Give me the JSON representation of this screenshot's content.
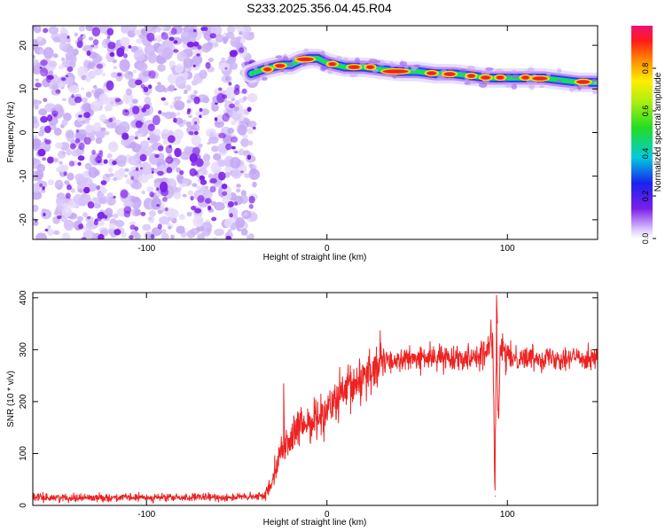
{
  "figure_title": "S233.2025.356.04.45.R04",
  "chart_data": [
    {
      "type": "heatmap",
      "title": "S233.2025.356.04.45.R04",
      "xlabel": "Height of straight line (km)",
      "ylabel": "Frequency (Hz)",
      "xlim": [
        -163,
        150
      ],
      "ylim": [
        -24.5,
        24.5
      ],
      "x_ticks": [
        -100,
        0,
        100
      ],
      "y_ticks": [
        -20,
        -10,
        0,
        10,
        20
      ],
      "noise_region_x": [
        -163,
        -40
      ],
      "ridge": {
        "x": [
          -42,
          -35,
          -30,
          -25,
          -20,
          -15,
          -10,
          -5,
          0,
          5,
          10,
          20,
          30,
          40,
          50,
          60,
          70,
          80,
          90,
          100,
          110,
          120,
          130,
          140,
          150
        ],
        "frequency_hz": [
          13.5,
          14.5,
          15.0,
          15.5,
          15.5,
          16.5,
          17.0,
          17.0,
          16.0,
          15.5,
          15.0,
          15.0,
          14.5,
          14.0,
          14.0,
          13.5,
          13.5,
          13.0,
          12.5,
          12.5,
          12.5,
          12.5,
          12.0,
          11.5,
          11.5
        ]
      },
      "colorbar": {
        "label": "Normalized spectral amplitude",
        "range": [
          0,
          1
        ],
        "ticks": [
          "0.0",
          "0.2",
          "0.4",
          "0.6",
          "0.8"
        ]
      }
    },
    {
      "type": "line",
      "xlabel": "Height of straight line (km)",
      "ylabel": "SNR (10 * v/v)",
      "xlim": [
        -163,
        150
      ],
      "ylim": [
        0,
        410
      ],
      "x_ticks": [
        -100,
        0,
        100
      ],
      "y_ticks": [
        0,
        100,
        200,
        300,
        400
      ],
      "series": [
        {
          "name": "SNR",
          "color": "#ee2222",
          "x": [
            -163,
            -120,
            -80,
            -40,
            -34,
            -31,
            -28,
            -26,
            -24,
            -22,
            -20,
            -15,
            -10,
            -5,
            0,
            5,
            10,
            15,
            20,
            25,
            30,
            40,
            50,
            60,
            70,
            80,
            88,
            92,
            93,
            94,
            95,
            96,
            100,
            110,
            120,
            130,
            140,
            150
          ],
          "y": [
            15,
            15,
            15,
            16,
            20,
            45,
            80,
            100,
            110,
            120,
            130,
            150,
            160,
            170,
            185,
            200,
            215,
            230,
            250,
            265,
            275,
            280,
            283,
            285,
            285,
            287,
            290,
            330,
            18,
            350,
            130,
            300,
            285,
            285,
            285,
            285,
            285,
            285
          ]
        }
      ],
      "spikes": [
        {
          "x": -24,
          "y": 235
        },
        {
          "x": 93,
          "y": 18
        },
        {
          "x": 94,
          "y": 405
        }
      ]
    }
  ],
  "colors": {
    "noise_purple": "#7b1fe8",
    "ridge_red": "#ee2222",
    "ridge_green": "#22dd44",
    "ridge_blue": "#1144ee"
  }
}
